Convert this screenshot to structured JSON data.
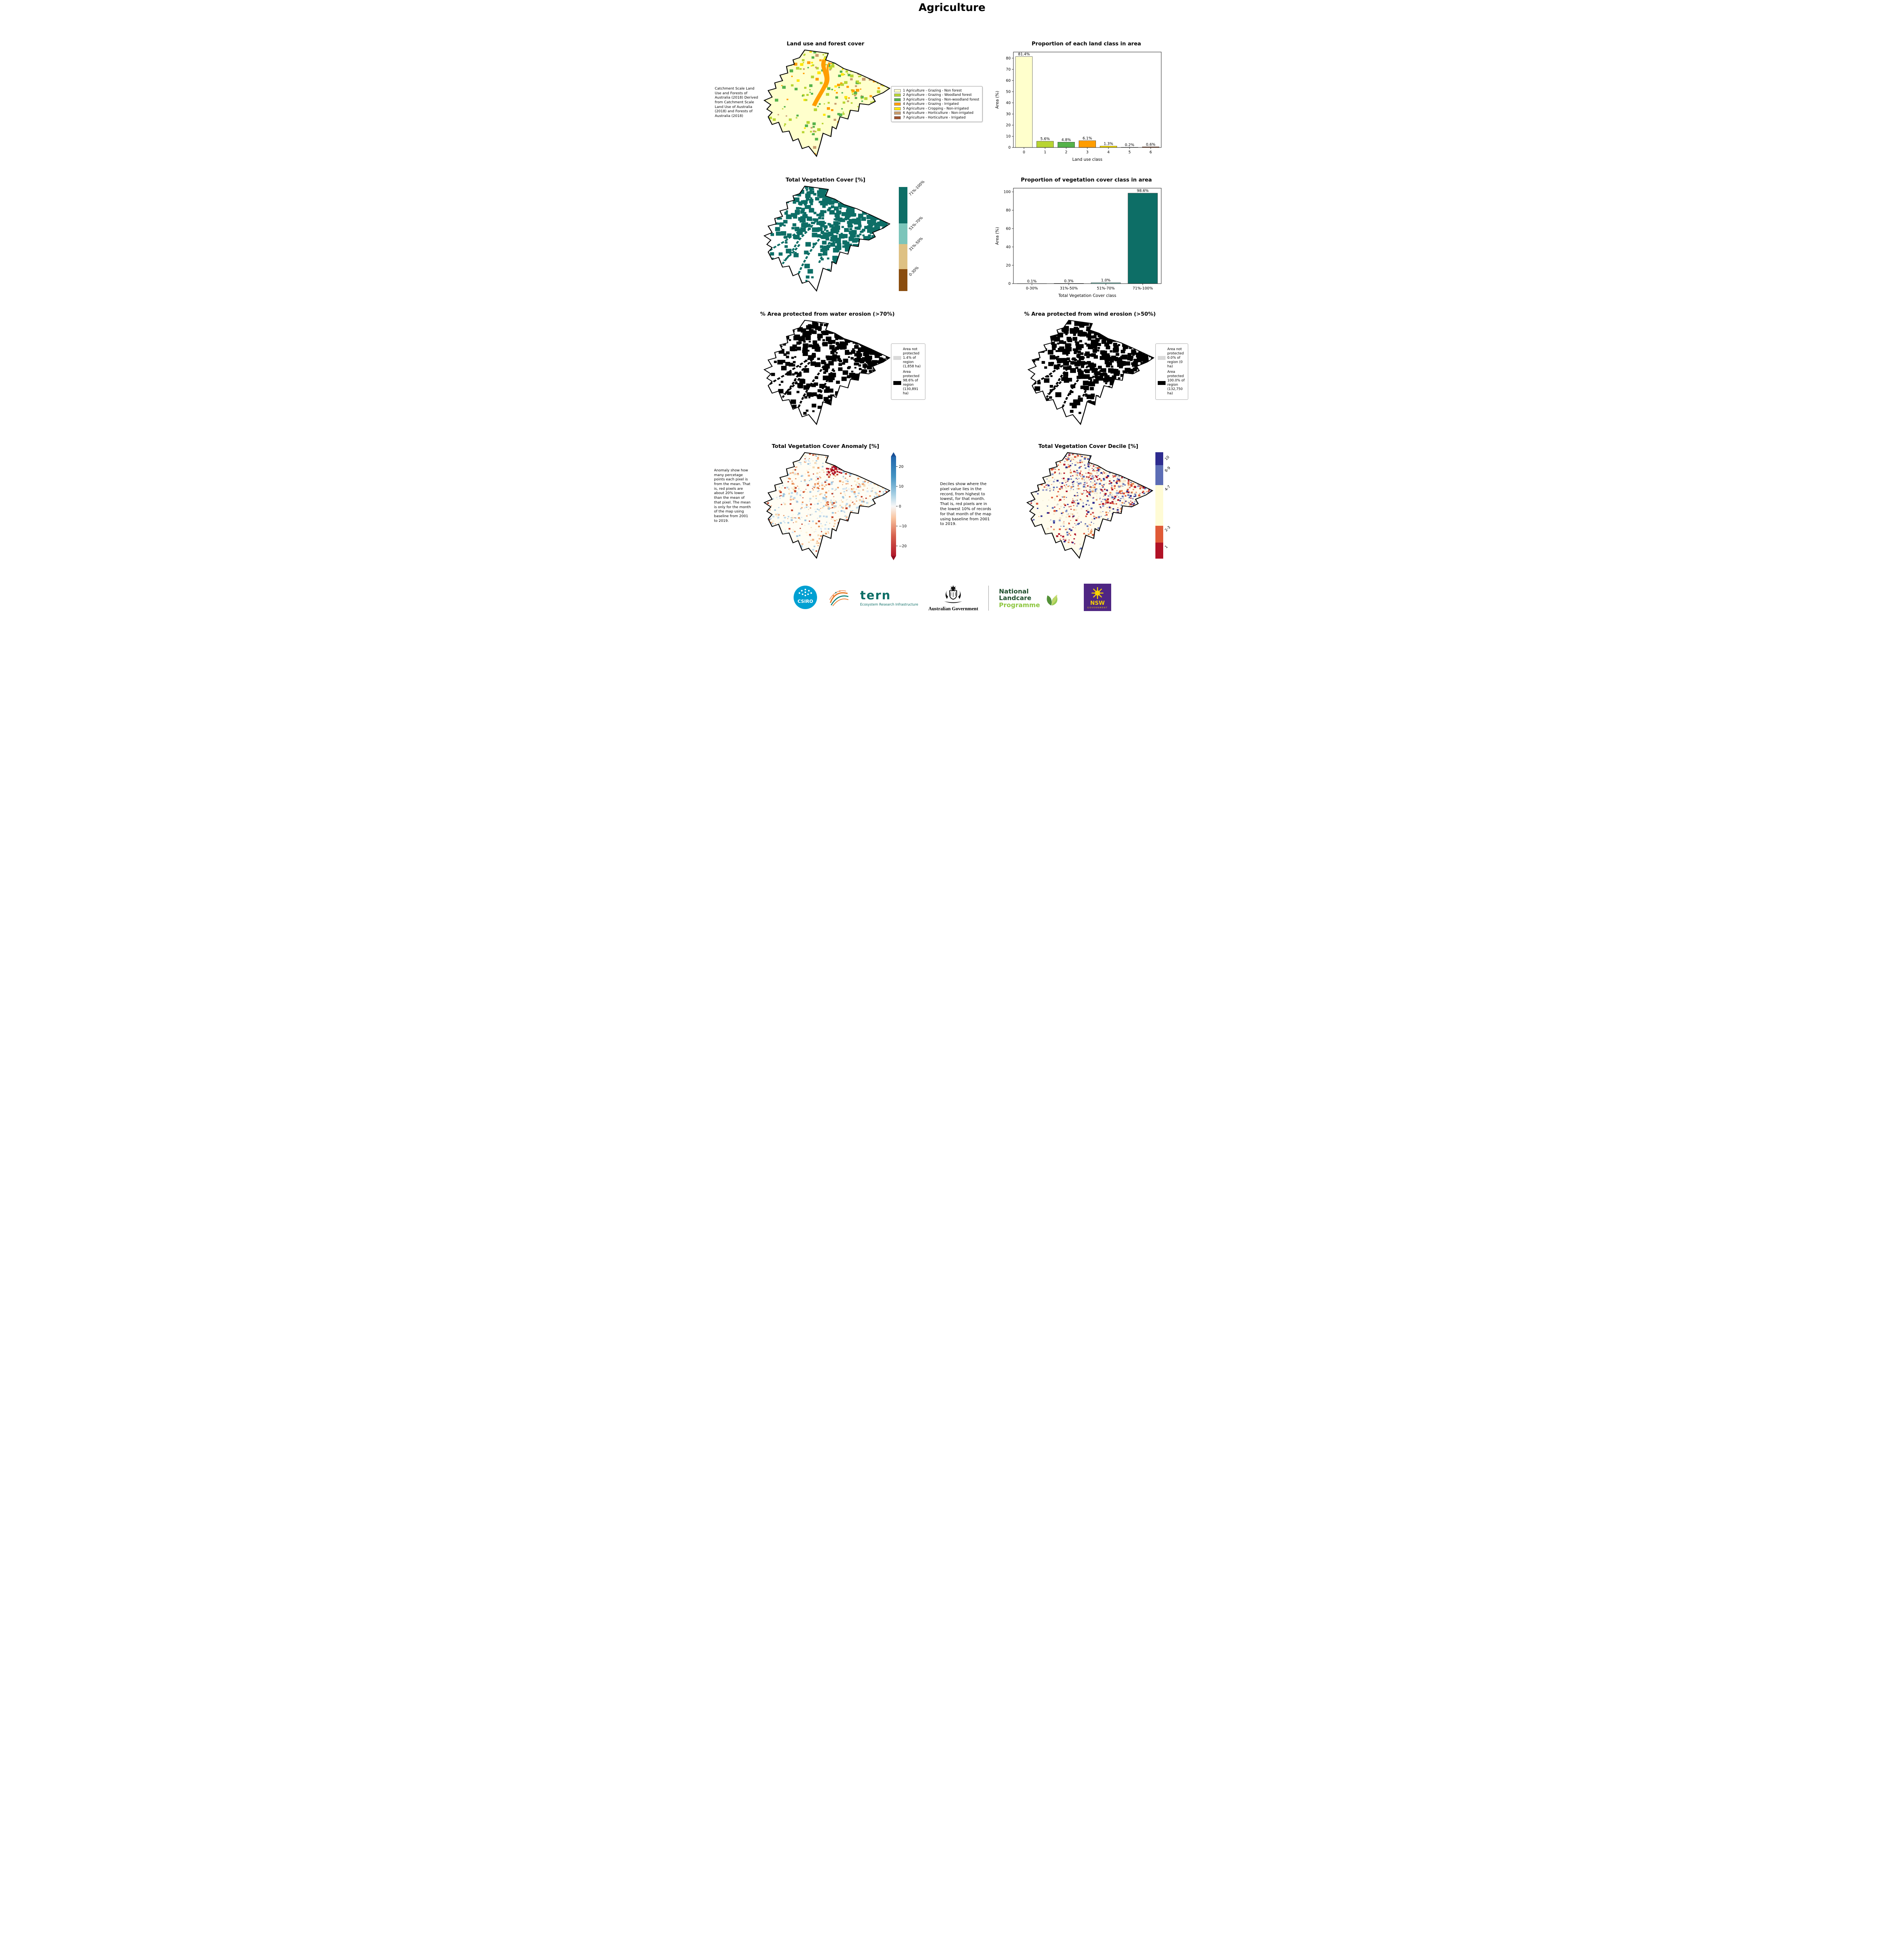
{
  "page": {
    "title": "Agriculture"
  },
  "panels": {
    "land_use_map": {
      "title": "Land use and forest cover",
      "annotation": "Catchment Scale Land Use and Forests of Australia (2018) Derived from Catchment Scale Land Use of Australia (2018) and Forests of Australia (2018)",
      "legend": [
        {
          "label": "1 Agriculture - Grazing - Non forest",
          "color": "#ffffcc"
        },
        {
          "label": "2 Agriculture - Grazing - Woodland forest",
          "color": "#b8d432"
        },
        {
          "label": "3 Agriculture - Grazing - Non-woodland forest",
          "color": "#55b24a"
        },
        {
          "label": "4 Agriculture - Grazing - Irrigated",
          "color": "#ff9d00"
        },
        {
          "label": "5 Agriculture - Cropping - Non-irrigated",
          "color": "#ffe600"
        },
        {
          "label": "6 Agriculture - Horticulture - Non-irrigated",
          "color": "#c79c6e"
        },
        {
          "label": "7 Agriculture - Horticulture - Irrigated",
          "color": "#9e4f2a"
        }
      ]
    },
    "veg_cover_map": {
      "title": "Total Vegetation Cover [%]",
      "colorbar": [
        {
          "label": "71%-100%",
          "color": "#0d6e66",
          "height": 35
        },
        {
          "label": "51%-70%",
          "color": "#7cc5ba",
          "height": 20
        },
        {
          "label": "31%-50%",
          "color": "#dec183",
          "height": 24
        },
        {
          "label": "0-30%",
          "color": "#8a4d0f",
          "height": 21
        }
      ]
    },
    "water_erosion_map": {
      "title": "% Area protected from water erosion (>70%)",
      "legend": [
        {
          "label": "Area not protected 1.4% of region (1,858 ha)",
          "color": "#d9d9d9"
        },
        {
          "label": "Area protected 98.6% of region (130,891 ha)",
          "color": "#000000"
        }
      ]
    },
    "wind_erosion_map": {
      "title": "% Area protected from wind erosion (>50%)",
      "legend": [
        {
          "label": "Area not protected 0.0% of region (0 ha)",
          "color": "#d9d9d9"
        },
        {
          "label": "Area protected 100.0% of region (132,750 ha)",
          "color": "#000000"
        }
      ]
    },
    "anomaly_map": {
      "title": "Total Vegetation Cover Anomaly [%]",
      "annotation": "Anomaly show how many percetage points each pixel is from the mean. That is, red pixels are about 20% lower than the mean of that pixel. The mean is only for the month of the map using baseline from 2001 to 2019.",
      "colorbar_range": [
        -25,
        25
      ],
      "colorbar_ticks": [
        {
          "value": 20,
          "label": "20"
        },
        {
          "value": 10,
          "label": "10"
        },
        {
          "value": 0,
          "label": "0"
        },
        {
          "value": -10,
          "label": "−10"
        },
        {
          "value": -20,
          "label": "−20"
        }
      ]
    },
    "decile_map": {
      "title": "Total Vegetation Cover Decile [%]",
      "annotation": "Deciles show where the pixel value lies in the record, from highest to lowest, for that month. That is, red pixels are in the lowest 10% of records for that month of the map using baseline from 2001 to 2019.",
      "colorbar": [
        {
          "label": "10",
          "color": "#2d2b8f",
          "height": 12
        },
        {
          "label": "8-9",
          "color": "#5c6db5",
          "height": 19
        },
        {
          "label": "4-7",
          "color": "#fffbd5",
          "height": 38
        },
        {
          "label": "2-3",
          "color": "#e05a36",
          "height": 16
        },
        {
          "label": "1",
          "color": "#b11226",
          "height": 15
        }
      ]
    }
  },
  "chart_data": [
    {
      "type": "bar",
      "title": "Proportion of each land class in area",
      "categories": [
        "0",
        "1",
        "2",
        "3",
        "4",
        "5",
        "6"
      ],
      "values": [
        81.4,
        5.6,
        4.8,
        6.1,
        1.3,
        0.2,
        0.6
      ],
      "labels": [
        "81.4%",
        "5.6%",
        "4.8%",
        "6.1%",
        "1.3%",
        "0.2%",
        "0.6%"
      ],
      "colors": [
        "#ffffcc",
        "#b8d432",
        "#55b24a",
        "#ff9d00",
        "#ffe600",
        "#c79c6e",
        "#9e4f2a"
      ],
      "xlabel": "Land use class",
      "ylabel": "Area (%)",
      "ylim": [
        0,
        85.5
      ],
      "yticks": [
        0,
        10,
        20,
        30,
        40,
        50,
        60,
        70,
        80
      ],
      "grid": false,
      "legend_position": "none"
    },
    {
      "type": "bar",
      "title": "Proportion of vegetation cover class in area",
      "categories": [
        "0-30%",
        "31%-50%",
        "51%-70%",
        "71%-100%"
      ],
      "values": [
        0.1,
        0.3,
        1.0,
        98.6
      ],
      "labels": [
        "0.1%",
        "0.3%",
        "1.0%",
        "98.6%"
      ],
      "colors": [
        "#8a4d0f",
        "#dec183",
        "#7cc5ba",
        "#0d6e66"
      ],
      "xlabel": "Total Vegetation Cover class",
      "ylabel": "Area (%)",
      "ylim": [
        0,
        104
      ],
      "yticks": [
        0,
        20,
        40,
        60,
        80,
        100
      ],
      "grid": false,
      "legend_position": "none"
    }
  ],
  "footer": {
    "csiro": "CSIRO",
    "tern": "tern",
    "tern_tagline": "Ecosystem Research Infrastructure",
    "aus_gov": "Australian Government",
    "landcare_line1": "National",
    "landcare_line2": "Landcare",
    "landcare_line3": "Programme",
    "nsw": "NSW",
    "nsw_sub": "GOVERNMENT"
  }
}
